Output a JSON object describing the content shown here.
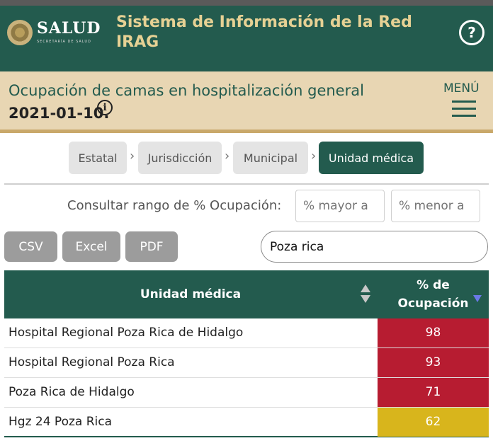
{
  "header": {
    "logo_text": "SALUD",
    "logo_subtext": "SECRETARÍA DE SALUD",
    "app_title": "Sistema de Información de la Red IRAG",
    "help_icon": "question-circle-icon",
    "help_glyph": "?"
  },
  "subheader": {
    "title": "Ocupación de camas en hospitalización general",
    "date": "2021-01-10.",
    "info_icon": "info-circle-icon",
    "info_glyph": "i",
    "menu_label": "MENÚ",
    "menu_icon": "hamburger-menu-icon"
  },
  "breadcrumbs": {
    "items": [
      {
        "label": "Estatal",
        "active": false
      },
      {
        "label": "Jurisdicción",
        "active": false
      },
      {
        "label": "Municipal",
        "active": false
      },
      {
        "label": "Unidad médica",
        "active": true
      }
    ],
    "separator": "›"
  },
  "range_filter": {
    "label": "Consultar rango de % Ocupación:",
    "min_placeholder": "% mayor a",
    "max_placeholder": "% menor a"
  },
  "export_buttons": {
    "csv": "CSV",
    "excel": "Excel",
    "pdf": "PDF"
  },
  "search": {
    "value": "Poza rica"
  },
  "table": {
    "columns": {
      "unit": "Unidad médica",
      "pct_line1": "% de",
      "pct_line2": "Ocupación"
    },
    "sort": {
      "column": "pct",
      "direction": "desc"
    },
    "rows": [
      {
        "unit": "Hospital Regional Poza Rica de Hidalgo",
        "pct": "98",
        "color": "#b71c31"
      },
      {
        "unit": "Hospital Regional Poza Rica",
        "pct": "93",
        "color": "#b71c31"
      },
      {
        "unit": "Poza Rica de Hidalgo",
        "pct": "71",
        "color": "#b71c31"
      },
      {
        "unit": "Hgz 24 Poza Rica",
        "pct": "62",
        "color": "#d8b51c"
      }
    ]
  },
  "colors": {
    "primary": "#235b4e",
    "gold": "#e6d194",
    "beige": "#e8d6b3",
    "high": "#b71c31",
    "medium": "#d8b51c"
  }
}
